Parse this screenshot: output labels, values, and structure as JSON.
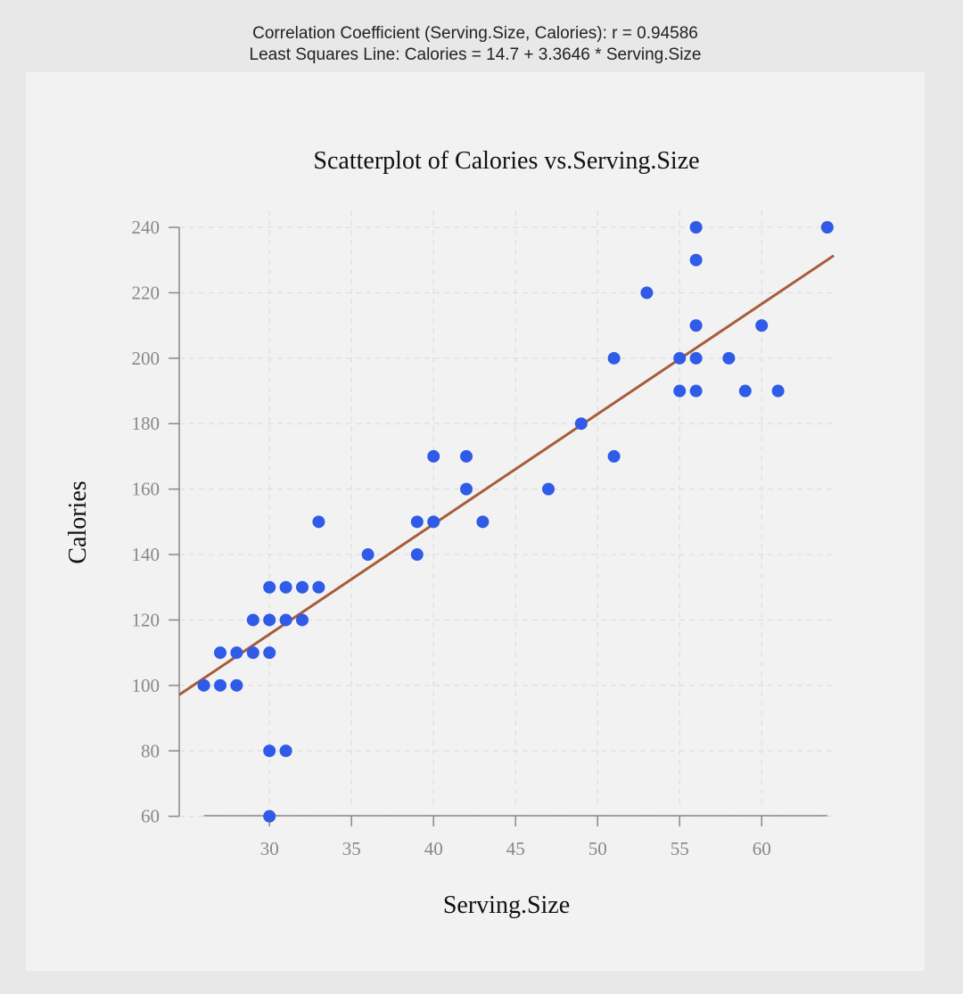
{
  "stats": {
    "correlation_line": "Correlation Coefficient (Serving.Size, Calories): r = 0.94586",
    "regression_line": "Least Squares Line: Calories = 14.7 + 3.3646 * Serving.Size"
  },
  "colors": {
    "points": "#2f5be8",
    "regression": "#a65d3a",
    "axis": "#888888",
    "grid": "#dddddd",
    "panel": "#f2f2f2"
  },
  "chart_data": {
    "type": "scatter",
    "title": "Scatterplot of Calories vs.Serving.Size",
    "xlabel": "Serving.Size",
    "ylabel": "Calories",
    "xlim": [
      24.5,
      64.5
    ],
    "ylim": [
      58,
      243
    ],
    "xticks": [
      30,
      35,
      40,
      45,
      50,
      55,
      60
    ],
    "yticks": [
      60,
      80,
      100,
      120,
      140,
      160,
      180,
      200,
      220,
      240
    ],
    "grid": true,
    "regression": {
      "intercept": 14.7,
      "slope": 3.3646
    },
    "points": [
      {
        "x": 26,
        "y": 100
      },
      {
        "x": 27,
        "y": 100
      },
      {
        "x": 28,
        "y": 100
      },
      {
        "x": 27,
        "y": 110
      },
      {
        "x": 28,
        "y": 110
      },
      {
        "x": 29,
        "y": 110
      },
      {
        "x": 30,
        "y": 110
      },
      {
        "x": 29,
        "y": 120
      },
      {
        "x": 30,
        "y": 120
      },
      {
        "x": 31,
        "y": 120
      },
      {
        "x": 32,
        "y": 120
      },
      {
        "x": 30,
        "y": 130
      },
      {
        "x": 31,
        "y": 130
      },
      {
        "x": 32,
        "y": 130
      },
      {
        "x": 33,
        "y": 130
      },
      {
        "x": 30,
        "y": 80
      },
      {
        "x": 31,
        "y": 80
      },
      {
        "x": 30,
        "y": 60
      },
      {
        "x": 33,
        "y": 150
      },
      {
        "x": 36,
        "y": 140
      },
      {
        "x": 39,
        "y": 140
      },
      {
        "x": 39,
        "y": 150
      },
      {
        "x": 40,
        "y": 150
      },
      {
        "x": 40,
        "y": 170
      },
      {
        "x": 42,
        "y": 170
      },
      {
        "x": 42,
        "y": 160
      },
      {
        "x": 43,
        "y": 150
      },
      {
        "x": 47,
        "y": 160
      },
      {
        "x": 49,
        "y": 180
      },
      {
        "x": 51,
        "y": 200
      },
      {
        "x": 51,
        "y": 170
      },
      {
        "x": 53,
        "y": 220
      },
      {
        "x": 55,
        "y": 200
      },
      {
        "x": 55,
        "y": 190
      },
      {
        "x": 56,
        "y": 240
      },
      {
        "x": 56,
        "y": 230
      },
      {
        "x": 56,
        "y": 210
      },
      {
        "x": 56,
        "y": 200
      },
      {
        "x": 56,
        "y": 190
      },
      {
        "x": 58,
        "y": 200
      },
      {
        "x": 59,
        "y": 190
      },
      {
        "x": 60,
        "y": 210
      },
      {
        "x": 61,
        "y": 190
      },
      {
        "x": 64,
        "y": 240
      }
    ]
  }
}
